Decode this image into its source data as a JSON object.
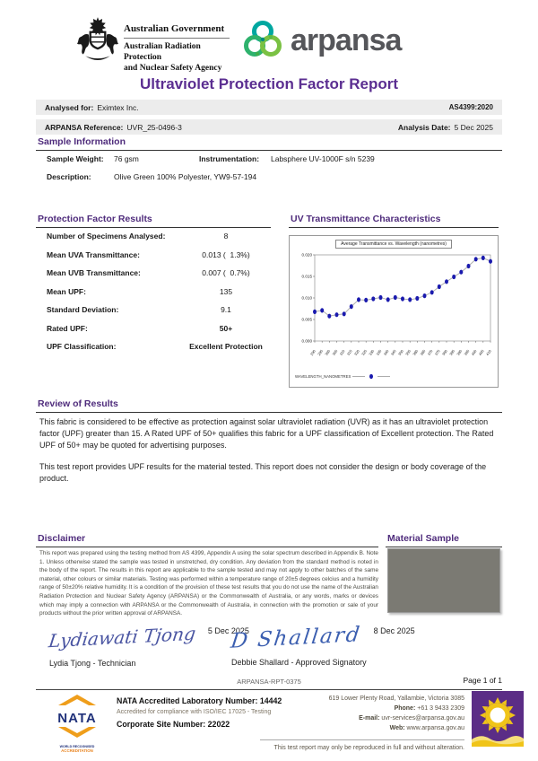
{
  "header": {
    "gov_title": "Australian Government",
    "gov_agency_line1": "Australian Radiation Protection",
    "gov_agency_line2": "and Nuclear Safety Agency",
    "brand": "arpansa",
    "report_title": "Ultraviolet Protection Factor Report"
  },
  "meta": {
    "analysed_for_label": "Analysed for:",
    "analysed_for": "Eximtex Inc.",
    "standard": "AS4399:2020",
    "reference_label": "ARPANSA Reference:",
    "reference": "UVR_25-0496-3",
    "analysis_date_label": "Analysis Date:",
    "analysis_date": "5 Dec 2025"
  },
  "sample_information": {
    "heading": "Sample Information",
    "weight_label": "Sample Weight:",
    "weight": "76 gsm",
    "instrumentation_label": "Instrumentation:",
    "instrumentation": "Labsphere UV-1000F s/n 5239",
    "description_label": "Description:",
    "description": "Olive Green 100% Polyester, YW9-57-194"
  },
  "results": {
    "heading": "Protection Factor Results",
    "rows": [
      {
        "label": "Number of Specimens Analysed:",
        "value": "8"
      },
      {
        "label": "Mean UVA Transmittance:",
        "value": "0.013 (  1.3%)"
      },
      {
        "label": "Mean UVB Transmittance:",
        "value": "0.007 (  0.7%)"
      },
      {
        "label": "Mean UPF:",
        "value": "135"
      },
      {
        "label": "Standard Deviation:",
        "value": "9.1"
      },
      {
        "label": "Rated UPF:",
        "value": "50+"
      },
      {
        "label": "UPF Classification:",
        "value": "Excellent Protection"
      }
    ]
  },
  "chart_section": {
    "heading": "UV Transmittance Characteristics"
  },
  "chart_data": {
    "type": "line",
    "title": "Average Transmittance vs. Wavelength (nanometres)",
    "legend": "WAVELENGTH_NANOMETRES",
    "x": [
      290,
      295,
      300,
      305,
      310,
      315,
      320,
      325,
      330,
      335,
      340,
      345,
      350,
      355,
      360,
      365,
      370,
      375,
      380,
      385,
      390,
      395,
      400,
      405,
      410
    ],
    "y": [
      0.0068,
      0.0071,
      0.0058,
      0.0061,
      0.0063,
      0.008,
      0.0096,
      0.0095,
      0.0098,
      0.0101,
      0.0096,
      0.0101,
      0.0098,
      0.0096,
      0.0099,
      0.0105,
      0.0113,
      0.0126,
      0.0138,
      0.0149,
      0.016,
      0.0174,
      0.019,
      0.0193,
      0.0185
    ],
    "ylim": [
      0,
      0.02
    ],
    "yticks": [
      0,
      0.005,
      0.01,
      0.015,
      0.02
    ],
    "xlabel": "",
    "ylabel": "",
    "grid": false,
    "legend_position": "bottom-left",
    "marker_color": "#1a1aae",
    "line_color": "#a8a8a8"
  },
  "review": {
    "heading": "Review of Results",
    "paragraph1": "This fabric is considered to be effective as protection against solar ultraviolet radiation (UVR) as it has an ultraviolet protection factor (UPF) greater than 15. A Rated UPF of 50+ qualifies this fabric for a UPF classification of Excellent protection. The Rated UPF of 50+ may be quoted for advertising purposes.",
    "paragraph2": "This test report provides UPF results for the material tested. This report does not consider the design or body coverage of the product."
  },
  "disclaimer": {
    "heading": "Disclaimer",
    "text": "This report was prepared using the testing method from AS 4399, Appendix A using the solar spectrum described in Appendix B. Note 1. Unless otherwise stated the sample was tested in unstretched, dry condition. Any deviation from the standard method is noted in the body of the report. The results in this report are applicable to the sample tested and may not apply to other batches of the same material, other colours or similar materials. Testing was performed within a temperature range of 20±5 degrees celcius and a humidity range of 50±20% relative humidity. It is a condition of the provision of these test results that you do not use the name of the Australian Radiation Protection and Nuclear Safety Agency (ARPANSA) or the Commonwealth of Australia, or any words, marks or devices which may imply a connection with ARPANSA or the Commonwealth of Australia, in connection with the promotion or sale of your products without the prior written approval of ARPANSA."
  },
  "material_sample": {
    "heading": "Material Sample",
    "swatch_color": "#7b7a73"
  },
  "signatures": {
    "left": {
      "signature": "Lydiawati Tjong",
      "date": "5 Dec 2025",
      "name": "Lydia Tjong - Technician"
    },
    "right": {
      "signature": "D Shallard",
      "date": "8 Dec 2025",
      "name": "Debbie Shallard - Approved Signatory"
    }
  },
  "footer_meta": {
    "doc_id": "ARPANSA-RPT-0375",
    "page": "Page 1 of 1"
  },
  "footer": {
    "nata_word": "NATA",
    "nata_tagline1": "WORLD RECOGNISED",
    "nata_tagline2": "ACCREDITATION",
    "lab_number": "NATA Accredited Laboratory Number: 14442",
    "compliance": "Accredited for compliance with ISO/IEC 17025 - Testing",
    "site_number": "Corporate Site Number: 22022",
    "address": "619 Lower Plenty Road, Yallambie, Victoria 3085",
    "phone_label": "Phone:",
    "phone": "+61 3 9433 2309",
    "email_label": "E-mail:",
    "email": "uvr-services@arpansa.gov.au",
    "web_label": "Web:",
    "web": "www.arpansa.gov.au",
    "note": "This test report may only be reproduced in full and without alteration."
  },
  "colors": {
    "accent_purple": "#4f2c7c",
    "nata_orange": "#ef9e1b",
    "nata_blue": "#20317a",
    "sun_purple": "#5b2d86",
    "sun_gold": "#f0c419"
  }
}
